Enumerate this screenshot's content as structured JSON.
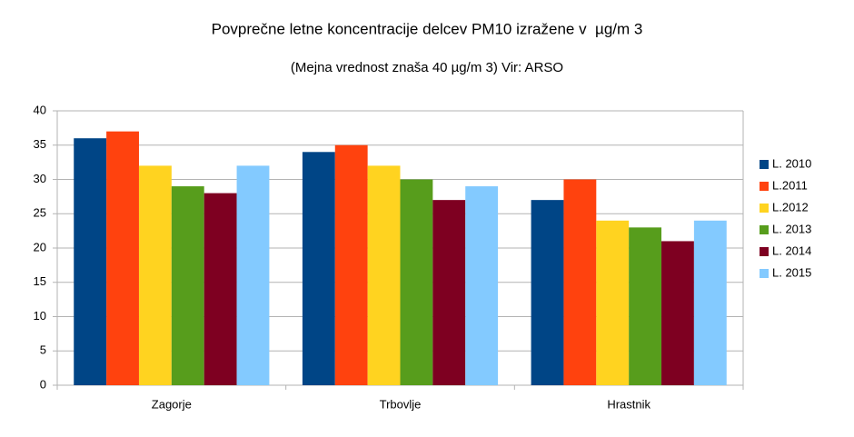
{
  "chart_data": {
    "type": "bar",
    "title": "Povprečne letne koncentracije delcev PM10 izražene v  µg/m 3",
    "subtitle": "(Mejna vrednost znaša 40 µg/m 3) Vir: ARSO",
    "categories": [
      "Zagorje",
      "Trbovlje",
      "Hrastnik"
    ],
    "series": [
      {
        "name": "L. 2010",
        "color": "#004586",
        "values": [
          36,
          34,
          27
        ]
      },
      {
        "name": "L.2011",
        "color": "#ff420e",
        "values": [
          37,
          35,
          30
        ]
      },
      {
        "name": "L.2012",
        "color": "#ffd320",
        "values": [
          32,
          32,
          24
        ]
      },
      {
        "name": "L. 2013",
        "color": "#579d1c",
        "values": [
          29,
          30,
          23
        ]
      },
      {
        "name": "L. 2014",
        "color": "#7e0021",
        "values": [
          28,
          27,
          21
        ]
      },
      {
        "name": "L. 2015",
        "color": "#83caff",
        "values": [
          32,
          29,
          24
        ]
      }
    ],
    "ylim": [
      0,
      40
    ],
    "yticks": [
      0,
      5,
      10,
      15,
      20,
      25,
      30,
      35,
      40
    ],
    "grid": true,
    "legend": "right"
  }
}
